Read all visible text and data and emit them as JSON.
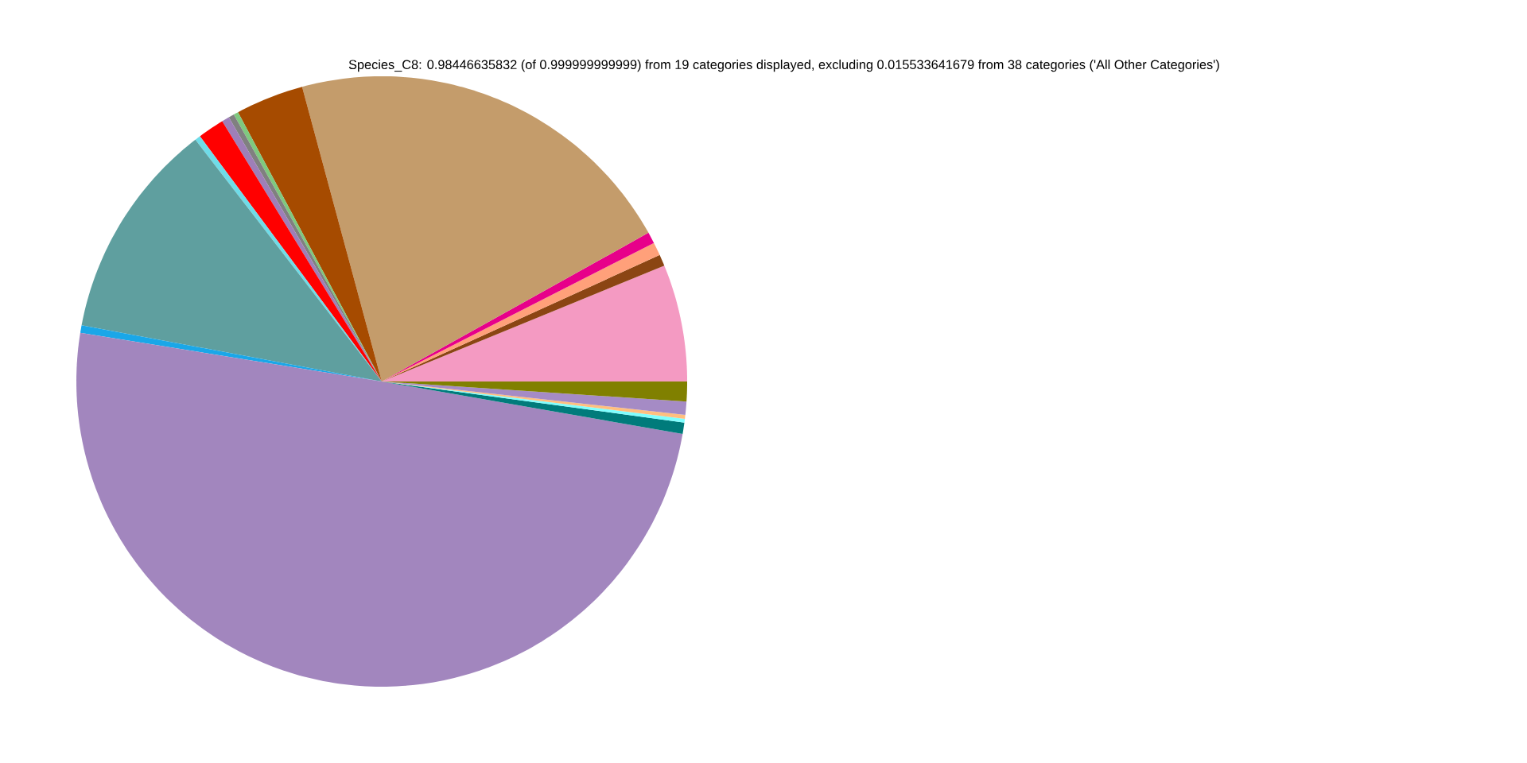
{
  "chart_data": {
    "type": "pie",
    "title": "Species_C8: 0.98446635832 (of 0.999999999999) from 19 categories displayed, excluding 0.015533641679 from 38 categories ('All Other Categories')",
    "categories": [
      null,
      null,
      null,
      null,
      null,
      null,
      null,
      null,
      null,
      null,
      null,
      null,
      null,
      null,
      null,
      null,
      null,
      null,
      null
    ],
    "values": [
      6.2,
      0.6,
      0.7,
      0.6,
      21.1,
      3.6,
      0.25,
      0.3,
      0.4,
      1.4,
      0.3,
      11.6,
      0.4,
      49.8,
      0.6,
      0.2,
      0.2,
      0.7,
      1.05
    ],
    "colors": [
      "#f49ac2",
      "#8b4513",
      "#ffa07a",
      "#e7008a",
      "#c49c6b",
      "#a64b00",
      "#7fc97f",
      "#808080",
      "#9e7fb8",
      "#ff0000",
      "#6fdce8",
      "#5f9f9f",
      "#1aa7e8",
      "#a286be",
      "#007b7b",
      "#7fffff",
      "#ffbf7f",
      "#a58bc5",
      "#808000"
    ]
  }
}
